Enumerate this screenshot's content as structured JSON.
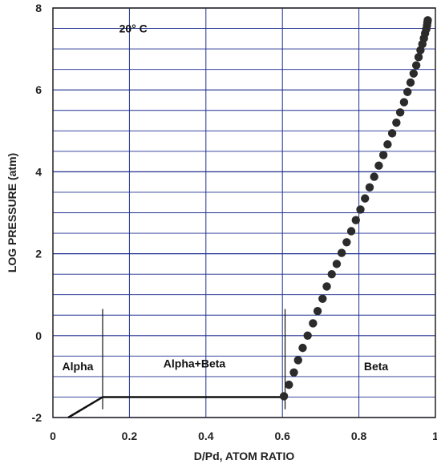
{
  "chart_data": {
    "type": "scatter",
    "title": "",
    "xlabel": "D/Pd, ATOM RATIO",
    "ylabel": "LOG PRESSURE (atm)",
    "xlim": [
      0,
      1
    ],
    "ylim": [
      -2,
      8
    ],
    "x_ticks": [
      0,
      0.2,
      0.4,
      0.6,
      0.8,
      1
    ],
    "x_tick_labels": [
      "0",
      "0.2",
      "0.4",
      "0.6",
      "0.8",
      "1"
    ],
    "y_ticks": [
      -2,
      0,
      2,
      4,
      6,
      8
    ],
    "y_tick_labels": [
      "-2",
      "0",
      "2",
      "4",
      "6",
      "8"
    ],
    "grid": true,
    "grid_y_step": 0.5,
    "colors": {
      "grid": "#1f2f8f",
      "points": "#2b2b2b",
      "line": "#111111"
    },
    "annotations": {
      "temperature": "20° C",
      "alpha": "Alpha",
      "alpha_beta": "Alpha+Beta",
      "beta": "Beta"
    },
    "line_series": {
      "x": [
        0.04,
        0.13,
        0.6
      ],
      "y": [
        -2.0,
        -1.5,
        -1.5
      ]
    },
    "phase_boundaries": [
      0.13,
      0.607
    ],
    "phase_boundary_range": [
      -1.8,
      0.65
    ],
    "points": {
      "x": [
        0.604,
        0.617,
        0.63,
        0.641,
        0.653,
        0.666,
        0.68,
        0.692,
        0.705,
        0.716,
        0.729,
        0.742,
        0.755,
        0.768,
        0.78,
        0.792,
        0.804,
        0.816,
        0.828,
        0.84,
        0.852,
        0.864,
        0.875,
        0.887,
        0.898,
        0.908,
        0.918,
        0.927,
        0.935,
        0.943,
        0.95,
        0.956,
        0.961,
        0.966,
        0.97,
        0.973,
        0.976,
        0.978,
        0.979,
        0.98
      ],
      "y": [
        -1.48,
        -1.2,
        -0.9,
        -0.6,
        -0.3,
        0.0,
        0.3,
        0.6,
        0.9,
        1.2,
        1.5,
        1.75,
        2.02,
        2.28,
        2.55,
        2.82,
        3.08,
        3.35,
        3.62,
        3.88,
        4.15,
        4.41,
        4.67,
        4.94,
        5.2,
        5.45,
        5.7,
        5.95,
        6.18,
        6.4,
        6.6,
        6.8,
        6.97,
        7.12,
        7.26,
        7.38,
        7.48,
        7.57,
        7.64,
        7.7
      ]
    }
  }
}
